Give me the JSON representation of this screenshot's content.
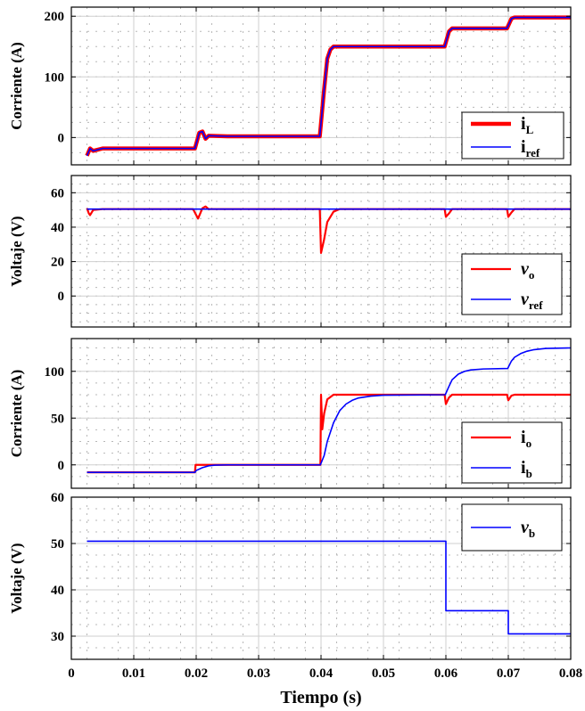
{
  "chart_data": [
    {
      "type": "line",
      "ylabel": "Corriente (A)",
      "xlim": [
        0,
        0.08
      ],
      "ylim": [
        -45,
        215
      ],
      "yticks": [
        0,
        100,
        200
      ],
      "grid": true,
      "legend_position": "right",
      "series": [
        {
          "name": "i",
          "sub": "L",
          "color": "#ff0000",
          "width": 4.5,
          "points": [
            [
              0.0025,
              -30
            ],
            [
              0.003,
              -18
            ],
            [
              0.0035,
              -22
            ],
            [
              0.005,
              -18
            ],
            [
              0.01,
              -18
            ],
            [
              0.015,
              -18
            ],
            [
              0.0198,
              -18
            ],
            [
              0.0205,
              8
            ],
            [
              0.021,
              10
            ],
            [
              0.0215,
              -2
            ],
            [
              0.022,
              3
            ],
            [
              0.025,
              2
            ],
            [
              0.03,
              2
            ],
            [
              0.035,
              2
            ],
            [
              0.0398,
              2
            ],
            [
              0.0405,
              80
            ],
            [
              0.041,
              130
            ],
            [
              0.0415,
              145
            ],
            [
              0.042,
              150
            ],
            [
              0.045,
              150
            ],
            [
              0.05,
              150
            ],
            [
              0.055,
              150
            ],
            [
              0.0598,
              150
            ],
            [
              0.0605,
              175
            ],
            [
              0.061,
              180
            ],
            [
              0.065,
              180
            ],
            [
              0.0698,
              180
            ],
            [
              0.0705,
              196
            ],
            [
              0.071,
              198
            ],
            [
              0.075,
              198
            ],
            [
              0.08,
              198
            ]
          ]
        },
        {
          "name": "i",
          "sub": "ref",
          "color": "#0000ff",
          "width": 1.6,
          "points": [
            [
              0.0025,
              -30
            ],
            [
              0.003,
              -18
            ],
            [
              0.0035,
              -22
            ],
            [
              0.005,
              -18
            ],
            [
              0.01,
              -18
            ],
            [
              0.015,
              -18
            ],
            [
              0.0198,
              -18
            ],
            [
              0.0205,
              8
            ],
            [
              0.021,
              10
            ],
            [
              0.0215,
              -2
            ],
            [
              0.022,
              3
            ],
            [
              0.025,
              2
            ],
            [
              0.03,
              2
            ],
            [
              0.035,
              2
            ],
            [
              0.0398,
              2
            ],
            [
              0.0405,
              80
            ],
            [
              0.041,
              130
            ],
            [
              0.0415,
              145
            ],
            [
              0.042,
              150
            ],
            [
              0.045,
              150
            ],
            [
              0.05,
              150
            ],
            [
              0.055,
              150
            ],
            [
              0.0598,
              150
            ],
            [
              0.0605,
              175
            ],
            [
              0.061,
              180
            ],
            [
              0.065,
              180
            ],
            [
              0.0698,
              180
            ],
            [
              0.0705,
              196
            ],
            [
              0.071,
              198
            ],
            [
              0.075,
              198
            ],
            [
              0.08,
              198
            ]
          ]
        }
      ]
    },
    {
      "type": "line",
      "ylabel": "Voltaje (V)",
      "xlim": [
        0,
        0.08
      ],
      "ylim": [
        -18,
        70
      ],
      "yticks": [
        0,
        20,
        40,
        60
      ],
      "grid": true,
      "legend_position": "bottom-right",
      "series": [
        {
          "name": "v",
          "sub": "o",
          "color": "#ff0000",
          "width": 2.2,
          "points": [
            [
              0.0025,
              51
            ],
            [
              0.0028,
              48
            ],
            [
              0.003,
              47
            ],
            [
              0.0035,
              50
            ],
            [
              0.005,
              50.5
            ],
            [
              0.0195,
              50.5
            ],
            [
              0.02,
              47
            ],
            [
              0.0203,
              45
            ],
            [
              0.021,
              51
            ],
            [
              0.0215,
              52
            ],
            [
              0.022,
              50.5
            ],
            [
              0.0398,
              50.5
            ],
            [
              0.04,
              25
            ],
            [
              0.0405,
              33
            ],
            [
              0.041,
              43
            ],
            [
              0.042,
              49
            ],
            [
              0.043,
              50.5
            ],
            [
              0.0598,
              50.5
            ],
            [
              0.06,
              46
            ],
            [
              0.0605,
              48
            ],
            [
              0.061,
              50.5
            ],
            [
              0.0698,
              50.5
            ],
            [
              0.07,
              46
            ],
            [
              0.0705,
              48.5
            ],
            [
              0.071,
              50.5
            ],
            [
              0.08,
              50.5
            ]
          ]
        },
        {
          "name": "v",
          "sub": "ref",
          "color": "#0000ff",
          "width": 1.6,
          "points": [
            [
              0.0025,
              50.5
            ],
            [
              0.08,
              50.5
            ]
          ]
        }
      ]
    },
    {
      "type": "line",
      "ylabel": "Corriente (A)",
      "xlim": [
        0,
        0.08
      ],
      "ylim": [
        -25,
        135
      ],
      "yticks": [
        0,
        50,
        100
      ],
      "grid": true,
      "legend_position": "bottom-right",
      "series": [
        {
          "name": "i",
          "sub": "o",
          "color": "#ff0000",
          "width": 2.2,
          "points": [
            [
              0.0025,
              -8
            ],
            [
              0.0198,
              -8
            ],
            [
              0.0199,
              0
            ],
            [
              0.039,
              0
            ],
            [
              0.0399,
              0
            ],
            [
              0.04,
              75
            ],
            [
              0.0402,
              38
            ],
            [
              0.0405,
              55
            ],
            [
              0.041,
              70
            ],
            [
              0.042,
              75
            ],
            [
              0.05,
              75
            ],
            [
              0.0598,
              75
            ],
            [
              0.06,
              65
            ],
            [
              0.0605,
              72
            ],
            [
              0.061,
              75
            ],
            [
              0.0698,
              75
            ],
            [
              0.07,
              69
            ],
            [
              0.0705,
              74
            ],
            [
              0.071,
              75
            ],
            [
              0.08,
              75
            ]
          ]
        },
        {
          "name": "i",
          "sub": "b",
          "color": "#0000ff",
          "width": 1.6,
          "points": [
            [
              0.0025,
              -8
            ],
            [
              0.0198,
              -8
            ],
            [
              0.02,
              -6
            ],
            [
              0.021,
              -3
            ],
            [
              0.022,
              -1
            ],
            [
              0.023,
              -0.3
            ],
            [
              0.025,
              0
            ],
            [
              0.0399,
              0
            ],
            [
              0.0405,
              10
            ],
            [
              0.041,
              25
            ],
            [
              0.042,
              45
            ],
            [
              0.043,
              58
            ],
            [
              0.044,
              65
            ],
            [
              0.045,
              69
            ],
            [
              0.046,
              71.5
            ],
            [
              0.048,
              73.5
            ],
            [
              0.05,
              74.5
            ],
            [
              0.0599,
              75
            ],
            [
              0.0605,
              84
            ],
            [
              0.061,
              91
            ],
            [
              0.062,
              97
            ],
            [
              0.063,
              100
            ],
            [
              0.064,
              101.5
            ],
            [
              0.066,
              102.5
            ],
            [
              0.0699,
              103
            ],
            [
              0.0705,
              111
            ],
            [
              0.071,
              115
            ],
            [
              0.072,
              119
            ],
            [
              0.073,
              121.5
            ],
            [
              0.074,
              123
            ],
            [
              0.076,
              124.5
            ],
            [
              0.08,
              125
            ]
          ]
        }
      ]
    },
    {
      "type": "line",
      "ylabel": "Voltaje (V)",
      "xlabel": "Tiempo (s)",
      "xlim": [
        0,
        0.08
      ],
      "ylim": [
        25,
        60
      ],
      "yticks": [
        30,
        40,
        50,
        60
      ],
      "xticks": [
        "0",
        "0.01",
        "0.02",
        "0.03",
        "0.04",
        "0.05",
        "0.06",
        "0.07",
        "0.08"
      ],
      "grid": true,
      "legend_position": "top-right",
      "series": [
        {
          "name": "v",
          "sub": "b",
          "color": "#0000ff",
          "width": 1.6,
          "points": [
            [
              0.0025,
              50.5
            ],
            [
              0.06,
              50.5
            ],
            [
              0.06,
              35.5
            ],
            [
              0.07,
              35.5
            ],
            [
              0.07,
              30.5
            ],
            [
              0.08,
              30.5
            ]
          ]
        }
      ]
    }
  ]
}
